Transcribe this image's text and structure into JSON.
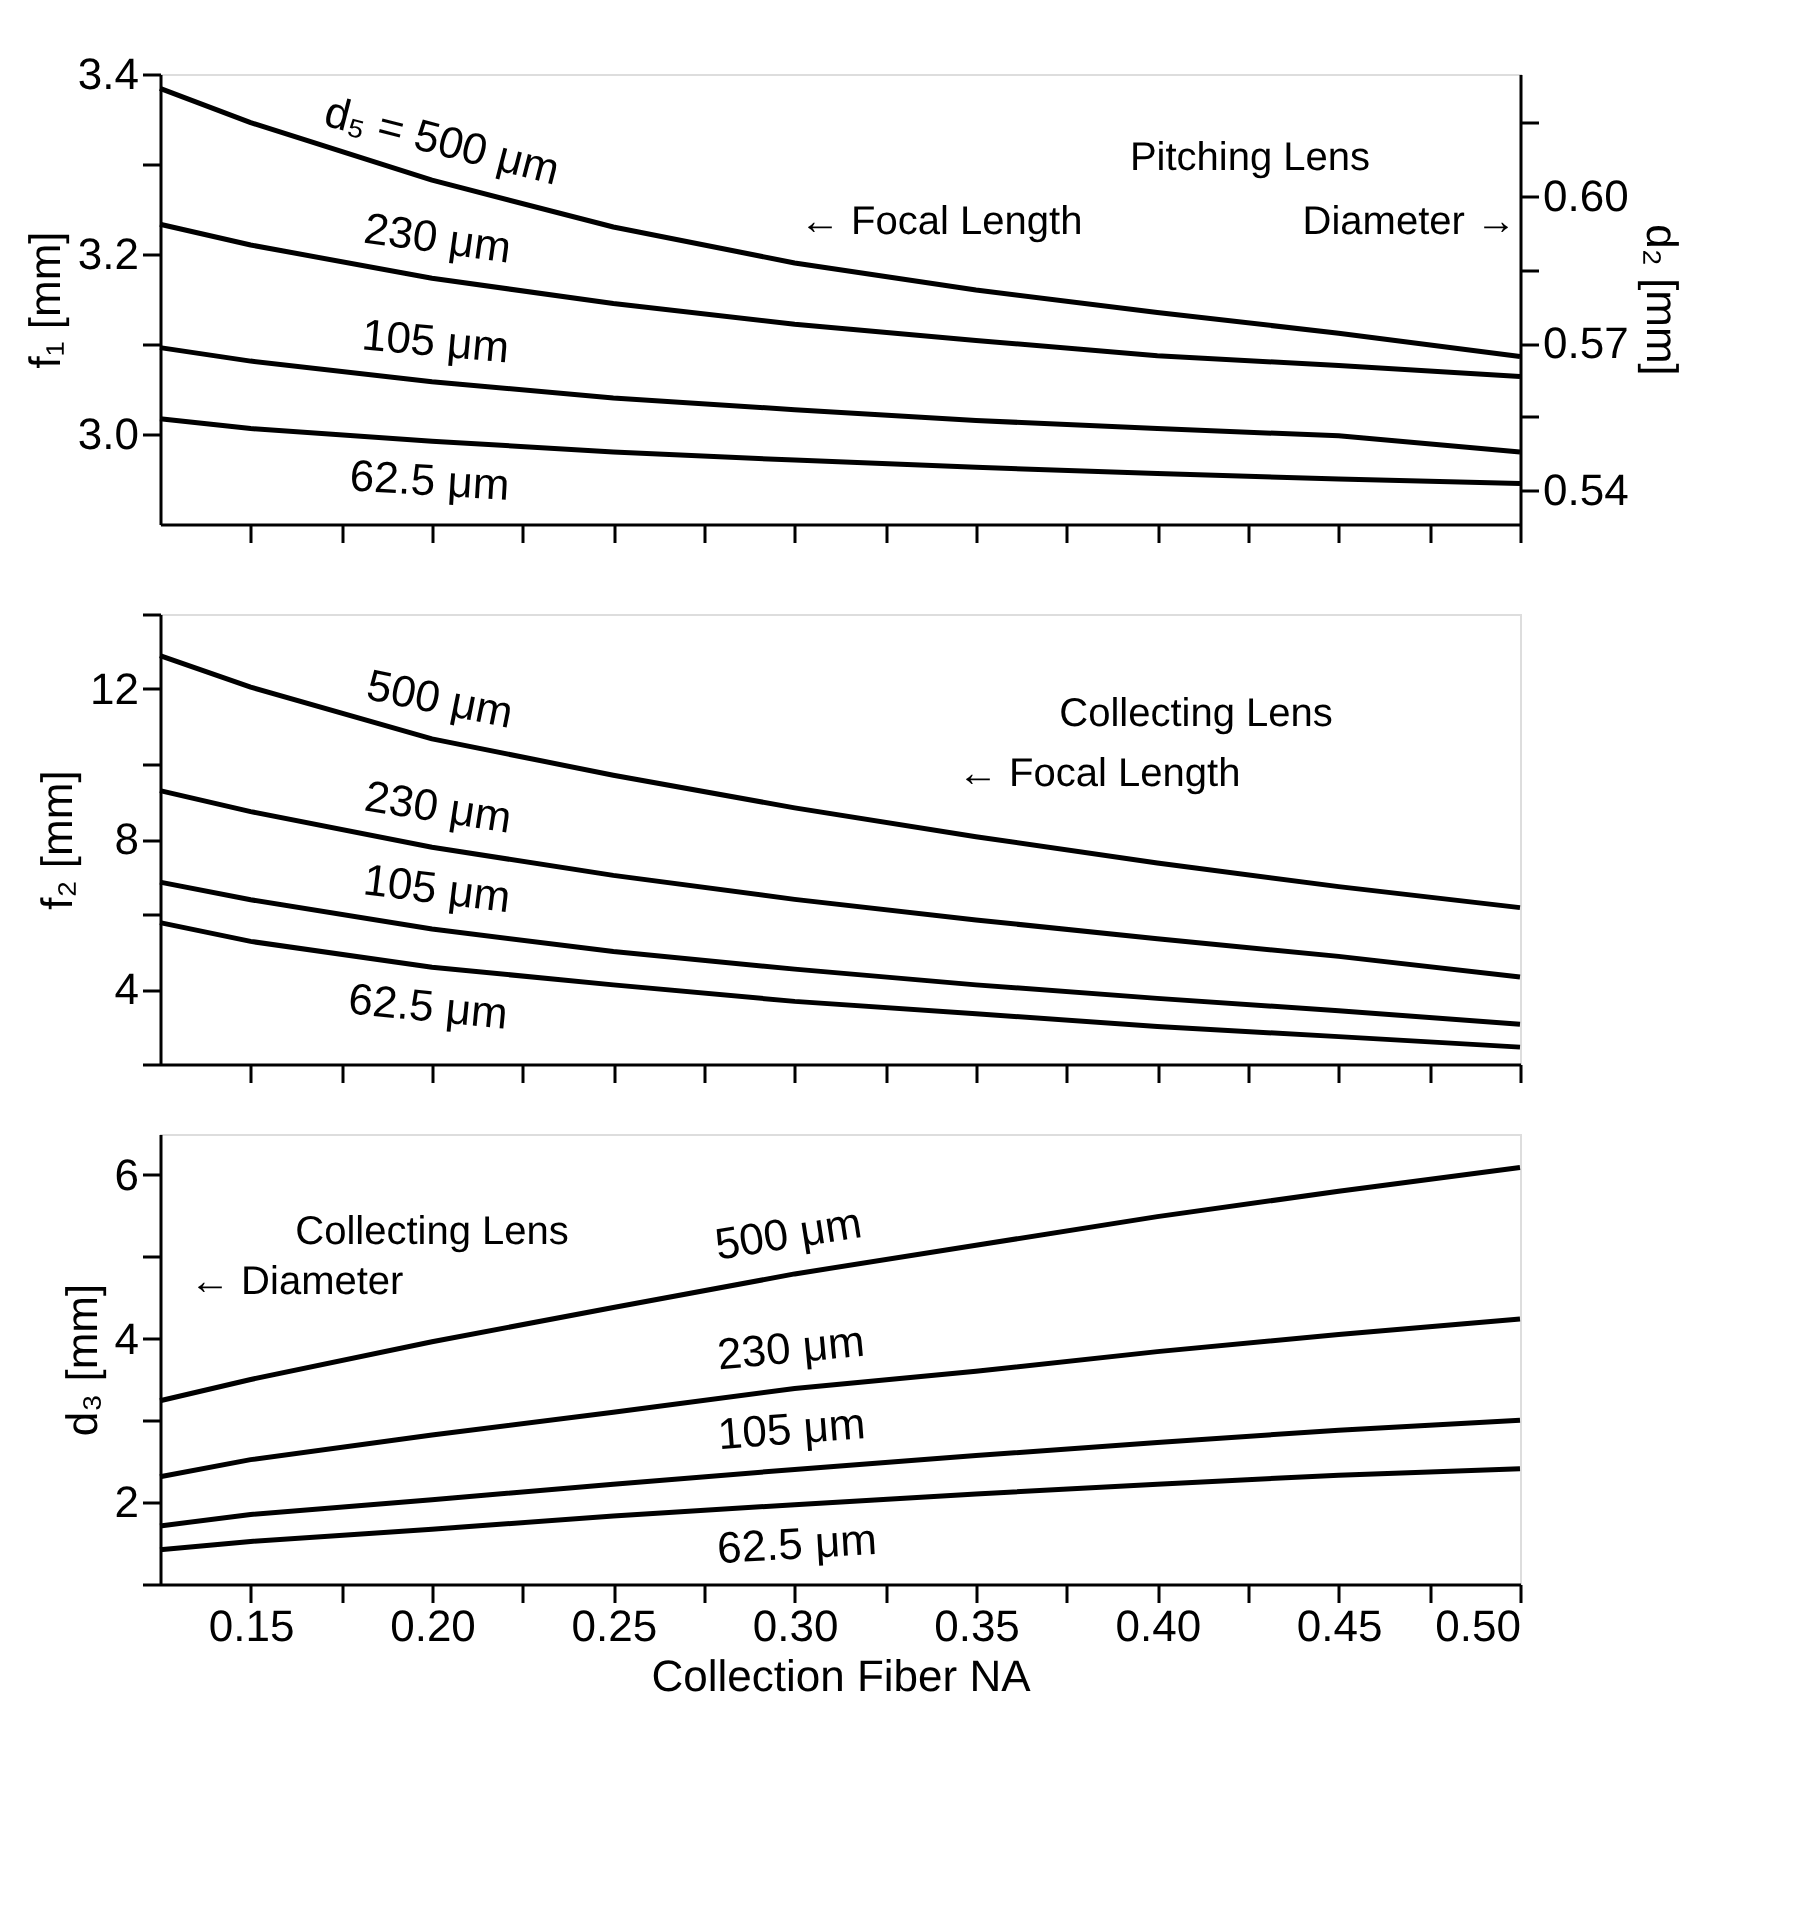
{
  "chart_data": [
    {
      "type": "line",
      "ylabel": "f₁ [mm]",
      "y2label": "d₂ [mm]",
      "x": [
        0.125,
        0.15,
        0.2,
        0.25,
        0.3,
        0.35,
        0.4,
        0.45,
        0.5
      ],
      "series": [
        {
          "name": "d₅ = 500 μm",
          "color": "#000000",
          "values": [
            3.384,
            3.346,
            3.282,
            3.23,
            3.19,
            3.16,
            3.135,
            3.112,
            3.086
          ]
        },
        {
          "name": "230 μm",
          "color": "#000000",
          "values": [
            3.233,
            3.21,
            3.173,
            3.145,
            3.122,
            3.104,
            3.087,
            3.076,
            3.064
          ]
        },
        {
          "name": "105 μm",
          "color": "#000000",
          "values": [
            3.096,
            3.081,
            3.058,
            3.04,
            3.027,
            3.015,
            3.006,
            2.998,
            2.98
          ]
        },
        {
          "name": "62.5 μm",
          "color": "#000000",
          "values": [
            3.017,
            3.006,
            2.992,
            2.98,
            2.971,
            2.963,
            2.956,
            2.95,
            2.945
          ]
        }
      ],
      "xlim": [
        0.125,
        0.5
      ],
      "xticks": [
        0.15,
        0.175,
        0.2,
        0.225,
        0.25,
        0.275,
        0.3,
        0.325,
        0.35,
        0.375,
        0.4,
        0.425,
        0.45,
        0.475,
        0.5
      ],
      "ylim": [
        2.9,
        3.4
      ],
      "yticks": [
        {
          "value": 3,
          "label": "3.0"
        },
        {
          "value": 3.1,
          "label": null
        },
        3.2,
        {
          "value": 3.3,
          "label": null
        },
        3.4
      ],
      "y2lim": [
        0.533,
        0.625
      ],
      "y2ticks": [
        0.54,
        {
          "value": 0.555,
          "label": null
        },
        0.57,
        {
          "value": 0.585,
          "label": null
        },
        {
          "value": 0.6,
          "label": "0.60"
        },
        {
          "value": 0.615,
          "label": null
        }
      ],
      "annotations": [
        "Pitching Lens",
        "← Focal Length",
        "Diameter →"
      ],
      "tick_labels": "y",
      "grid": false,
      "legend": false,
      "marker": "none",
      "line_style": "solid"
    },
    {
      "type": "line",
      "ylabel": "f₂ [mm]",
      "x": [
        0.125,
        0.15,
        0.2,
        0.25,
        0.3,
        0.35,
        0.4,
        0.45,
        0.5
      ],
      "series": [
        {
          "name": "500 μm",
          "color": "#000000",
          "values": [
            12.89,
            12.05,
            10.67,
            9.7,
            8.83,
            8.06,
            7.36,
            6.73,
            6.17
          ]
        },
        {
          "name": "230 μm",
          "color": "#000000",
          "values": [
            9.29,
            8.73,
            7.78,
            7.03,
            6.39,
            5.84,
            5.34,
            4.87,
            4.32
          ]
        },
        {
          "name": "105 μm",
          "color": "#000000",
          "values": [
            6.85,
            6.38,
            5.6,
            5.0,
            4.53,
            4.11,
            3.75,
            3.42,
            3.06
          ]
        },
        {
          "name": "62.5 μm",
          "color": "#000000",
          "values": [
            5.77,
            5.27,
            4.58,
            4.11,
            3.67,
            3.34,
            3.0,
            2.73,
            2.45
          ]
        }
      ],
      "xlim": [
        0.125,
        0.5
      ],
      "xticks": [
        0.15,
        0.175,
        0.2,
        0.225,
        0.25,
        0.275,
        0.3,
        0.325,
        0.35,
        0.375,
        0.4,
        0.425,
        0.45,
        0.475,
        0.5
      ],
      "ylim": [
        2,
        14
      ],
      "yticks": [
        {
          "value": 2,
          "label": null
        },
        4,
        {
          "value": 6,
          "label": null
        },
        8,
        {
          "value": 10,
          "label": null
        },
        12,
        {
          "value": 14,
          "label": null
        }
      ],
      "annotations": [
        "Collecting Lens",
        "← Focal Length"
      ],
      "tick_labels": "y",
      "grid": false,
      "legend": false,
      "marker": "none",
      "line_style": "solid"
    },
    {
      "type": "line",
      "ylabel": "d₃ [mm]",
      "xlabel": "Collection Fiber NA",
      "x": [
        0.125,
        0.15,
        0.2,
        0.25,
        0.3,
        0.35,
        0.4,
        0.45,
        0.5
      ],
      "series": [
        {
          "name": "500 μm",
          "color": "#000000",
          "values": [
            3.24,
            3.5,
            3.96,
            4.38,
            4.79,
            5.14,
            5.49,
            5.8,
            6.09
          ]
        },
        {
          "name": "230 μm",
          "color": "#000000",
          "values": [
            2.31,
            2.52,
            2.82,
            3.1,
            3.39,
            3.6,
            3.84,
            4.05,
            4.24
          ]
        },
        {
          "name": "105 μm",
          "color": "#000000",
          "values": [
            1.71,
            1.85,
            2.03,
            2.22,
            2.4,
            2.57,
            2.73,
            2.88,
            3.0
          ]
        },
        {
          "name": "62.5 μm",
          "color": "#000000",
          "values": [
            1.42,
            1.52,
            1.67,
            1.83,
            1.97,
            2.1,
            2.22,
            2.33,
            2.41
          ]
        }
      ],
      "xlim": [
        0.125,
        0.5
      ],
      "xticks": [
        0.15,
        {
          "value": 0.175,
          "label": null
        },
        {
          "value": 0.2,
          "label": "0.20"
        },
        {
          "value": 0.225,
          "label": null
        },
        0.25,
        {
          "value": 0.275,
          "label": null
        },
        {
          "value": 0.3,
          "label": "0.30"
        },
        {
          "value": 0.325,
          "label": null
        },
        0.35,
        {
          "value": 0.375,
          "label": null
        },
        {
          "value": 0.4,
          "label": "0.40"
        },
        {
          "value": 0.425,
          "label": null
        },
        0.45,
        {
          "value": 0.475,
          "label": null
        },
        {
          "value": 0.5,
          "label": "0.50"
        }
      ],
      "ylim": [
        1,
        6.5
      ],
      "yticks": [
        {
          "value": 1,
          "label": null
        },
        2,
        {
          "value": 3,
          "label": null
        },
        4,
        {
          "value": 5,
          "label": null
        },
        6
      ],
      "annotations": [
        "Collecting Lens",
        "← Diameter"
      ],
      "grid": false,
      "legend": false,
      "marker": "none",
      "line_style": "solid"
    }
  ]
}
